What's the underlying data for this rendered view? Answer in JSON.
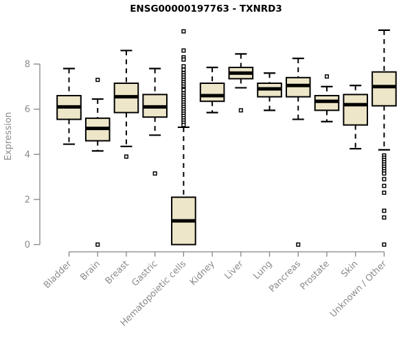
{
  "chart_data": {
    "type": "boxplot",
    "title": "ENSG00000197763 - TXNRD3",
    "ylabel": "Expression",
    "ylim": [
      0,
      9.6
    ],
    "yticks": [
      0,
      2,
      4,
      6,
      8
    ],
    "grid": false,
    "legend": "none",
    "categories": [
      "Bladder",
      "Brain",
      "Breast",
      "Gastric",
      "Hematopoietic cells",
      "Kidney",
      "Liver",
      "Lung",
      "Pancreas",
      "Prostate",
      "Skin",
      "Unknown / Other"
    ],
    "boxes": [
      {
        "category": "Bladder",
        "whisker_low": 4.45,
        "q1": 5.55,
        "median": 6.1,
        "q3": 6.6,
        "whisker_high": 7.8,
        "outliers": []
      },
      {
        "category": "Brain",
        "whisker_low": 4.15,
        "q1": 4.6,
        "median": 5.15,
        "q3": 5.6,
        "whisker_high": 6.45,
        "outliers": [
          7.3,
          0
        ]
      },
      {
        "category": "Breast",
        "whisker_low": 4.35,
        "q1": 5.85,
        "median": 6.55,
        "q3": 7.15,
        "whisker_high": 8.6,
        "outliers": [
          3.9
        ]
      },
      {
        "category": "Gastric",
        "whisker_low": 4.85,
        "q1": 5.65,
        "median": 6.1,
        "q3": 6.65,
        "whisker_high": 7.8,
        "outliers": [
          3.15
        ]
      },
      {
        "category": "Hematopoietic cells",
        "whisker_low": 0.0,
        "q1": 0.0,
        "median": 1.05,
        "q3": 2.1,
        "whisker_high": 5.2,
        "outliers": [
          9.45,
          8.6,
          8.3,
          8.2,
          7.9,
          7.75,
          7.6,
          7.5,
          7.4,
          7.3,
          7.2,
          7.1,
          7.0,
          6.9,
          6.85,
          6.7,
          6.6,
          6.5,
          6.4,
          6.3,
          6.2,
          6.1,
          6.0,
          5.9,
          5.8,
          5.7,
          5.6,
          5.5,
          5.4,
          5.3
        ]
      },
      {
        "category": "Kidney",
        "whisker_low": 5.85,
        "q1": 6.35,
        "median": 6.6,
        "q3": 7.15,
        "whisker_high": 7.85,
        "outliers": []
      },
      {
        "category": "Liver",
        "whisker_low": 6.95,
        "q1": 7.35,
        "median": 7.6,
        "q3": 7.85,
        "whisker_high": 8.45,
        "outliers": [
          5.95
        ]
      },
      {
        "category": "Lung",
        "whisker_low": 5.95,
        "q1": 6.55,
        "median": 6.9,
        "q3": 7.15,
        "whisker_high": 7.6,
        "outliers": []
      },
      {
        "category": "Pancreas",
        "whisker_low": 5.55,
        "q1": 6.55,
        "median": 7.05,
        "q3": 7.4,
        "whisker_high": 8.25,
        "outliers": [
          0
        ]
      },
      {
        "category": "Prostate",
        "whisker_low": 5.45,
        "q1": 5.95,
        "median": 6.35,
        "q3": 6.6,
        "whisker_high": 7.0,
        "outliers": [
          7.45
        ]
      },
      {
        "category": "Skin",
        "whisker_low": 4.25,
        "q1": 5.3,
        "median": 6.2,
        "q3": 6.65,
        "whisker_high": 7.05,
        "outliers": []
      },
      {
        "category": "Unknown / Other",
        "whisker_low": 4.2,
        "q1": 6.15,
        "median": 7.0,
        "q3": 7.65,
        "whisker_high": 9.5,
        "outliers": [
          3.95,
          3.85,
          3.75,
          3.65,
          3.55,
          3.45,
          3.35,
          3.25,
          3.15,
          2.9,
          2.6,
          2.3,
          1.5,
          1.2,
          0
        ]
      }
    ]
  },
  "colors": {
    "box_fill": "#EDE6C8",
    "box_stroke": "#000000",
    "median": "#000000",
    "axis_line": "#848484",
    "axis_text": "#8A8A8A",
    "title_text": "#000000",
    "background": "#FFFFFF",
    "outlier_fill": "#FFFFFF"
  }
}
